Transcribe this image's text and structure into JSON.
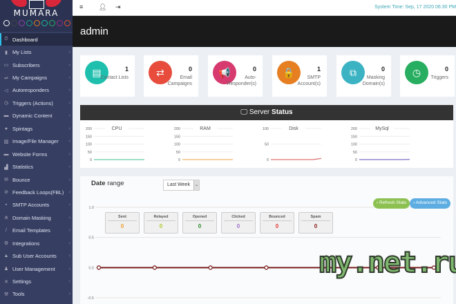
{
  "brand": {
    "name": "MUMARA",
    "theme_dots": [
      "#ffffff",
      "#444444",
      "#8e44ad",
      "#16a085",
      "#e67e22",
      "#1abc9c",
      "#27ae60",
      "#9b2c8b",
      "#e0552b"
    ]
  },
  "sidebar": {
    "items": [
      {
        "label": "Dashboard",
        "icon": "dashboard-icon",
        "active": true
      },
      {
        "label": "My Lists",
        "icon": "clipboard-icon"
      },
      {
        "label": "Subscribers",
        "icon": "id-card-icon"
      },
      {
        "label": "My Campaigns",
        "icon": "exchange-icon"
      },
      {
        "label": "Autoresponders",
        "icon": "megaphone-icon"
      },
      {
        "label": "Triggers (Actions)",
        "icon": "clock-icon"
      },
      {
        "label": "Dynamic Content",
        "icon": "window-icon"
      },
      {
        "label": "Spintags",
        "icon": "circle-icon"
      },
      {
        "label": "Image/File Manager",
        "icon": "image-icon"
      },
      {
        "label": "Website Forms",
        "icon": "form-icon"
      },
      {
        "label": "Statistics",
        "icon": "bar-chart-icon"
      },
      {
        "label": "Bounce",
        "icon": "envelope-open-icon"
      },
      {
        "label": "Feedback Loops(FBL)",
        "icon": "ban-icon"
      },
      {
        "label": "SMTP Accounts",
        "icon": "lock-icon"
      },
      {
        "label": "Domain Masking",
        "icon": "sitemap-icon"
      },
      {
        "label": "Email Templates",
        "icon": "pencil-icon"
      },
      {
        "label": "Integrations",
        "icon": "cogs-icon"
      },
      {
        "label": "Sub User Accounts",
        "icon": "user-icon"
      },
      {
        "label": "User Management",
        "icon": "users-icon"
      },
      {
        "label": "Settings",
        "icon": "wrench-cross-icon"
      },
      {
        "label": "Tools",
        "icon": "wrench-icon"
      }
    ]
  },
  "topbar": {
    "system_time": "System Time: Sep, 17 2020 06:30 PM",
    "icons": [
      "menu-icon",
      "user-icon",
      "sign-out-icon"
    ]
  },
  "header": {
    "title": "admin"
  },
  "cards": [
    {
      "count": "1",
      "label": "Contact Lists",
      "color": "#1fbfae",
      "icon": "clipboard-icon",
      "glyph": "▤"
    },
    {
      "count": "0",
      "label": "Email Campaigns",
      "color": "#e74c3c",
      "icon": "exchange-icon",
      "glyph": "⇄"
    },
    {
      "count": "0",
      "label": "Auto-Responder(s)",
      "color": "#d63a6e",
      "icon": "megaphone-icon",
      "glyph": "📢"
    },
    {
      "count": "1",
      "label": "SMTP Account(s)",
      "color": "#e67e22",
      "icon": "lock-icon",
      "glyph": "🔒"
    },
    {
      "count": "0",
      "label": "Masking Domain(s)",
      "color": "#3bb3c3",
      "icon": "sitemap-icon",
      "glyph": "⧉"
    },
    {
      "count": "0",
      "label": "Triggers",
      "color": "#27ae60",
      "icon": "clock-icon",
      "glyph": "◷"
    }
  ],
  "server_status": {
    "title_light": "Server",
    "title_bold": "Status",
    "icon": "monitor-icon",
    "charts": [
      {
        "title": "CPU",
        "ylim": [
          0,
          200
        ],
        "ticks": [
          "200",
          "150",
          "100",
          "50",
          "0"
        ],
        "color": "#66c9a0",
        "values": [
          0,
          0,
          0,
          0,
          0,
          0,
          0
        ]
      },
      {
        "title": "RAM",
        "ylim": [
          0,
          200
        ],
        "ticks": [
          "200",
          "150",
          "100",
          "50",
          "0"
        ],
        "color": "#f0b468",
        "values": [
          0,
          0,
          0,
          0,
          0,
          0,
          0
        ]
      },
      {
        "title": "Disk",
        "ylim": [
          0,
          100
        ],
        "ticks": [
          "100",
          "50",
          "0"
        ],
        "color": "#e07070",
        "values": [
          0,
          0,
          0,
          0,
          0,
          0,
          4
        ]
      },
      {
        "title": "MySql",
        "ylim": [
          0,
          200
        ],
        "ticks": [
          "200",
          "150",
          "100",
          "50",
          "0"
        ],
        "color": "#7b6fc4",
        "values": [
          0,
          0,
          0,
          0,
          0,
          0,
          1
        ]
      }
    ]
  },
  "date_range": {
    "label_bold": "Date",
    "label_light": "range",
    "selected": "Last Week"
  },
  "buttons": {
    "refresh": "› Refresh Stats",
    "advanced": "› Advanced Stats"
  },
  "stats": [
    {
      "label": "Sent",
      "value": "0",
      "color": "#f0a030"
    },
    {
      "label": "Relayed",
      "value": "0",
      "color": "#b5c930"
    },
    {
      "label": "Opened",
      "value": "0",
      "color": "#2a8a2a"
    },
    {
      "label": "Clicked",
      "value": "0",
      "color": "#a070c8"
    },
    {
      "label": "Bounced",
      "value": "0",
      "color": "#e03a3a"
    },
    {
      "label": "Spam",
      "value": "0",
      "color": "#8b1a1a"
    }
  ],
  "chart_data": {
    "type": "line",
    "ylim": [
      -0.5,
      1.0
    ],
    "yticks": [
      "1.0",
      "0.5",
      "0.0",
      "-0.5"
    ],
    "grid": true,
    "series": [
      {
        "values": [
          0,
          0,
          0,
          0,
          0,
          0,
          0
        ],
        "color": "#7a1f1f"
      }
    ]
  },
  "watermark": "my.net.ru"
}
